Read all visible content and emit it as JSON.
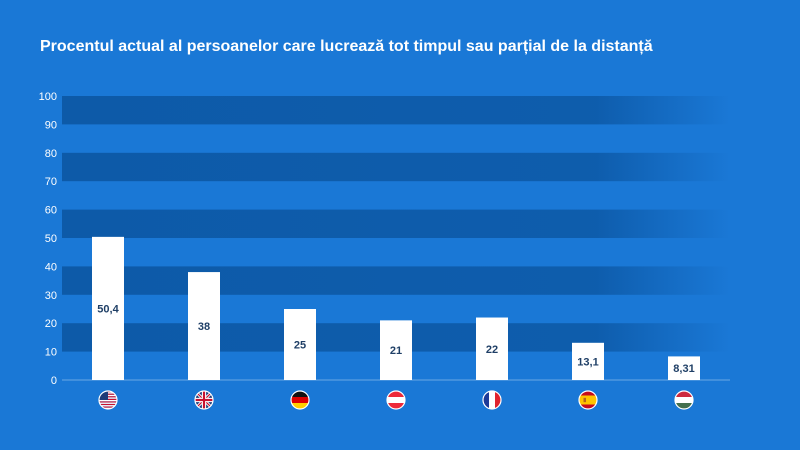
{
  "chart_data": {
    "type": "bar",
    "title": "Procentul actual al persoanelor care lucrează tot timpul sau parțial de la distanță",
    "xlabel": "",
    "ylabel": "",
    "ylim": [
      0,
      100
    ],
    "yticks": [
      0,
      10,
      20,
      30,
      40,
      50,
      60,
      70,
      80,
      90,
      100
    ],
    "categories": [
      "us-flag-icon",
      "uk-flag-icon",
      "germany-flag-icon",
      "austria-flag-icon",
      "france-flag-icon",
      "spain-flag-icon",
      "hungary-flag-icon"
    ],
    "values": [
      50.4,
      38,
      25,
      21,
      22,
      13.1,
      8.31
    ],
    "value_labels": [
      "50,4",
      "38",
      "25",
      "21",
      "22",
      "13,1",
      "8,31"
    ],
    "grid": true,
    "legend": "none"
  },
  "colors": {
    "background": "#1a78d6",
    "band_dark": "#0d5aa8",
    "bar": "#ffffff",
    "value_text": "#1f3f66"
  }
}
